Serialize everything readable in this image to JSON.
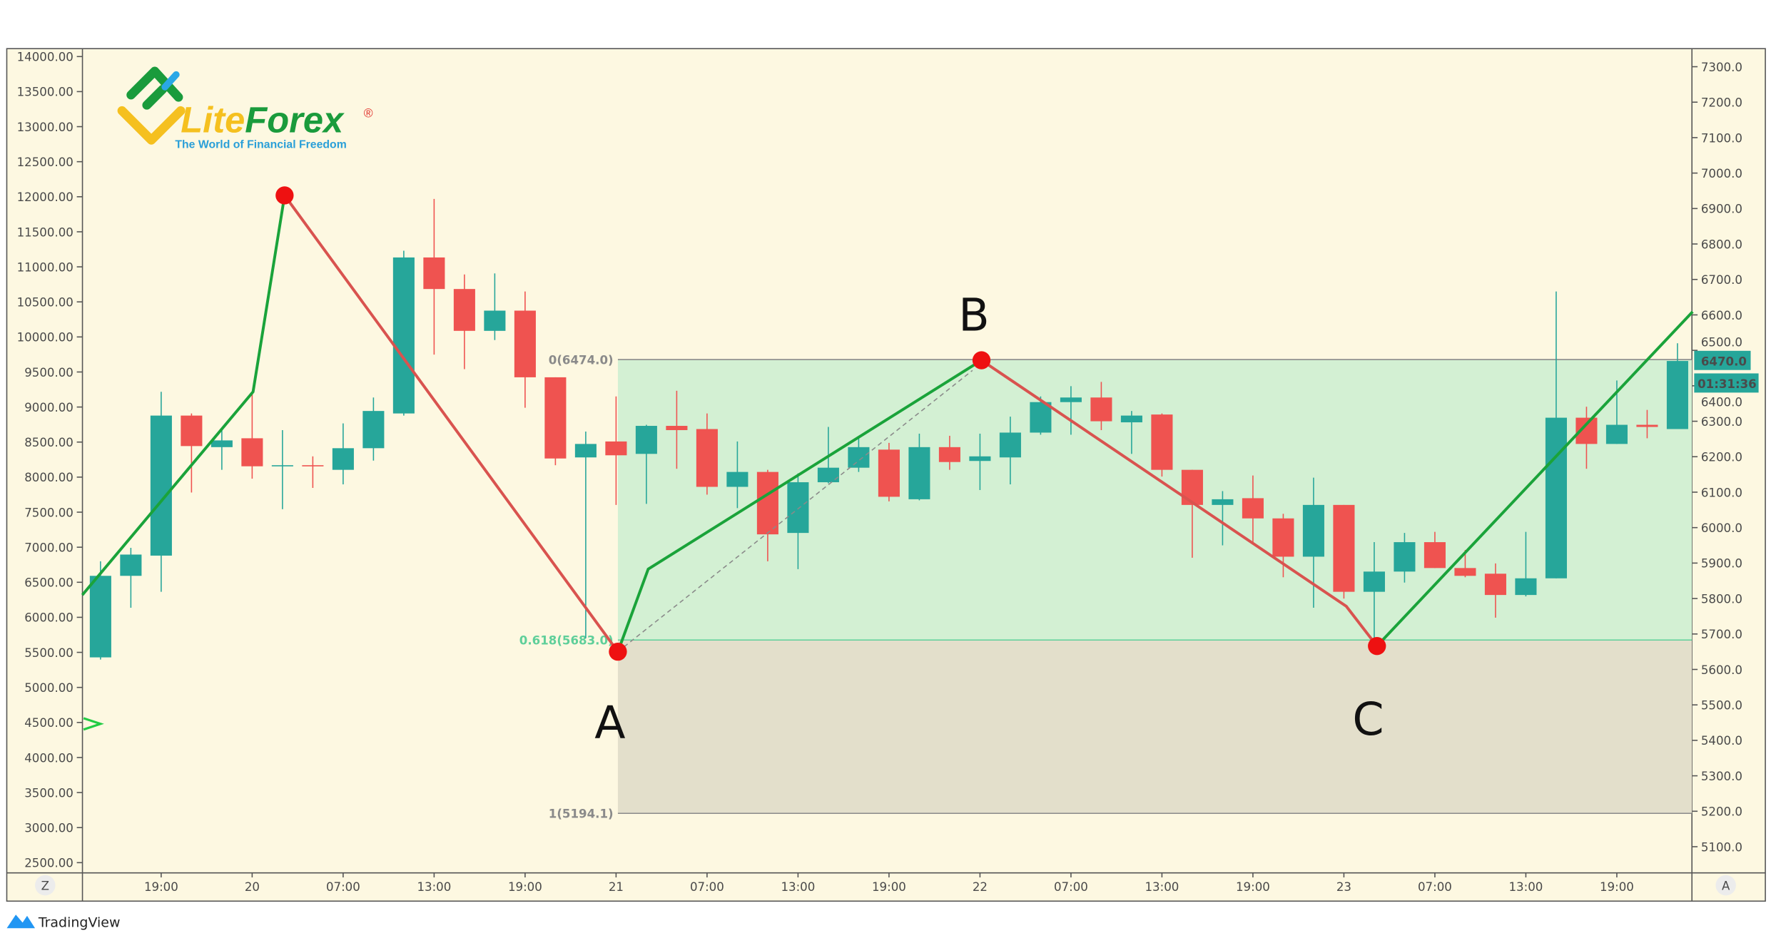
{
  "logo": {
    "brand_part1": "Lite",
    "brand_part2": "Forex",
    "registered": "®",
    "tagline": "The World of Financial Freedom"
  },
  "footer": {
    "brand": "TradingView"
  },
  "buttons": {
    "left_scale": "Z",
    "right_scale": "A"
  },
  "colors": {
    "background": "#fdf8e1",
    "up": "#26a69a",
    "down": "#ef5350",
    "wave_up": "#1aa33a",
    "wave_down": "#d9534f",
    "pivot": "#ee1111",
    "fib_zone_upper": "#d3f0d3",
    "fib_zone_lower": "#e3dfcb",
    "price_badge": "#26a69a"
  },
  "chart_data": {
    "type": "candlestick",
    "interval_hours": 2,
    "left_axis": {
      "ticks": [
        "14000.00",
        "13500.00",
        "13000.00",
        "12500.00",
        "12000.00",
        "11500.00",
        "11000.00",
        "10500.00",
        "10000.00",
        "9500.00",
        "9000.00",
        "8500.00",
        "8000.00",
        "7500.00",
        "7000.00",
        "6500.00",
        "6000.00",
        "5500.00",
        "5000.00",
        "4500.00",
        "4000.00",
        "3500.00",
        "3000.00",
        "2500.00"
      ],
      "range": [
        2500,
        14000
      ]
    },
    "right_axis": {
      "ticks": [
        "7300.0",
        "7200.0",
        "7100.0",
        "7000.0",
        "6900.0",
        "6800.0",
        "6700.0",
        "6600.0",
        "6500.0",
        "6400.0",
        "6300.0",
        "6200.0",
        "6100.0",
        "6000.0",
        "5900.0",
        "5800.0",
        "5700.0",
        "5600.0",
        "5500.0",
        "5400.0",
        "5300.0",
        "5200.0",
        "5100.0"
      ],
      "range": [
        5050,
        7350
      ]
    },
    "x_ticks": [
      {
        "i": 2,
        "label": "19:00"
      },
      {
        "i": 5,
        "label": "20"
      },
      {
        "i": 8,
        "label": "07:00"
      },
      {
        "i": 11,
        "label": "13:00"
      },
      {
        "i": 14,
        "label": "19:00"
      },
      {
        "i": 17,
        "label": "21"
      },
      {
        "i": 20,
        "label": "07:00"
      },
      {
        "i": 23,
        "label": "13:00"
      },
      {
        "i": 26,
        "label": "19:00"
      },
      {
        "i": 29,
        "label": "22"
      },
      {
        "i": 32,
        "label": "07:00"
      },
      {
        "i": 35,
        "label": "13:00"
      },
      {
        "i": 38,
        "label": "19:00"
      },
      {
        "i": 41,
        "label": "23"
      },
      {
        "i": 44,
        "label": "07:00"
      },
      {
        "i": 47,
        "label": "13:00"
      },
      {
        "i": 50,
        "label": "19:00"
      }
    ],
    "candles": [
      [
        5634,
        5905,
        5628,
        5864
      ],
      [
        5864,
        5943,
        5774,
        5924
      ],
      [
        5921,
        6383,
        5819,
        6316
      ],
      [
        6316,
        6322,
        6099,
        6230
      ],
      [
        6227,
        6278,
        6163,
        6246
      ],
      [
        6252,
        6380,
        6138,
        6173
      ],
      [
        6173,
        6275,
        6052,
        6176
      ],
      [
        6176,
        6201,
        6112,
        6173
      ],
      [
        6163,
        6294,
        6122,
        6224
      ],
      [
        6224,
        6367,
        6189,
        6329
      ],
      [
        6322,
        6781,
        6316,
        6762
      ],
      [
        6762,
        6927,
        6488,
        6673
      ],
      [
        6673,
        6714,
        6447,
        6555
      ],
      [
        6555,
        6717,
        6529,
        6612
      ],
      [
        6612,
        6666,
        6338,
        6424
      ],
      [
        6424,
        6424,
        6176,
        6195
      ],
      [
        6198,
        6271,
        5688,
        6236
      ],
      [
        6243,
        6370,
        6064,
        6204
      ],
      [
        6208,
        6290,
        6067,
        6287
      ],
      [
        6287,
        6386,
        6166,
        6275
      ],
      [
        6278,
        6322,
        6093,
        6115
      ],
      [
        6115,
        6243,
        6055,
        6157
      ],
      [
        6157,
        6163,
        5905,
        5981
      ],
      [
        5985,
        6153,
        5883,
        6128
      ],
      [
        6128,
        6284,
        6125,
        6169
      ],
      [
        6169,
        6255,
        6157,
        6227
      ],
      [
        6220,
        6239,
        6074,
        6087
      ],
      [
        6080,
        6265,
        6077,
        6227
      ],
      [
        6227,
        6259,
        6163,
        6185
      ],
      [
        6188,
        6265,
        6106,
        6201
      ],
      [
        6198,
        6313,
        6122,
        6268
      ],
      [
        6268,
        6370,
        6262,
        6354
      ],
      [
        6354,
        6399,
        6262,
        6367
      ],
      [
        6367,
        6411,
        6275,
        6300
      ],
      [
        6297,
        6329,
        6208,
        6316
      ],
      [
        6319,
        6322,
        6144,
        6163
      ],
      [
        6163,
        6163,
        5915,
        6064
      ],
      [
        6064,
        6103,
        5950,
        6080
      ],
      [
        6083,
        6147,
        5959,
        6026
      ],
      [
        6026,
        6039,
        5860,
        5918
      ],
      [
        5918,
        6141,
        5774,
        6064
      ],
      [
        6064,
        6064,
        5800,
        5819
      ],
      [
        5819,
        5959,
        5685,
        5876
      ],
      [
        5876,
        5985,
        5845,
        5959
      ],
      [
        5959,
        5988,
        5886,
        5886
      ],
      [
        5886,
        5937,
        5860,
        5864
      ],
      [
        5870,
        5899,
        5746,
        5810
      ],
      [
        5810,
        5988,
        5806,
        5857
      ],
      [
        5857,
        6666,
        5857,
        6310
      ],
      [
        6310,
        6341,
        6166,
        6236
      ],
      [
        6236,
        6415,
        6236,
        6290
      ],
      [
        6290,
        6332,
        6252,
        6284
      ],
      [
        6278,
        6520,
        6278,
        6470
      ]
    ],
    "candle_format": [
      "open",
      "high",
      "low",
      "close"
    ],
    "last_price": "6470.0",
    "countdown": "01:31:36",
    "fibonacci": [
      {
        "level": "0(6474.0)",
        "price": 6474.0,
        "color": "#8a8a8a"
      },
      {
        "level": "0.618(5683.0)",
        "price": 5683.0,
        "color": "#5fcf9a"
      },
      {
        "level": "1(5194.1)",
        "price": 5194.1,
        "color": "#8a8a8a"
      }
    ],
    "waves": [
      {
        "color": "up",
        "points": [
          [
            -0.6,
            5810
          ],
          [
            5.03,
            6383
          ],
          [
            6.07,
            6937
          ]
        ]
      },
      {
        "color": "down",
        "points": [
          [
            6.07,
            6937
          ],
          [
            17.06,
            5650
          ]
        ]
      },
      {
        "color": "up",
        "points": [
          [
            17.06,
            5650
          ],
          [
            18.06,
            5883
          ],
          [
            29.05,
            6472
          ]
        ]
      },
      {
        "color": "down",
        "points": [
          [
            29.05,
            6472
          ],
          [
            41.08,
            5778
          ],
          [
            42.09,
            5666
          ]
        ]
      },
      {
        "color": "up",
        "points": [
          [
            42.09,
            5666
          ],
          [
            52.5,
            6609
          ]
        ]
      }
    ],
    "pivots": [
      [
        6.07,
        6937
      ],
      [
        17.06,
        5650
      ],
      [
        29.05,
        6472
      ],
      [
        42.09,
        5666
      ]
    ],
    "labels": [
      {
        "text": "A",
        "i": 16.8,
        "price": 5450
      },
      {
        "text": "B",
        "i": 28.8,
        "price": 6600
      },
      {
        "text": "C",
        "i": 41.8,
        "price": 5460
      }
    ]
  }
}
